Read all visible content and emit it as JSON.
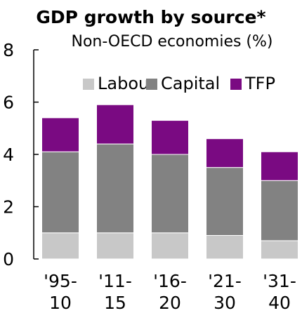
{
  "chart_data": {
    "type": "bar",
    "stacked": true,
    "title": "GDP growth by source*",
    "subtitle": "Non-OECD economies (%)",
    "xlabel": "",
    "ylabel": "",
    "ylim": [
      0,
      8
    ],
    "yticks": [
      "0",
      "2",
      "4",
      "6",
      "8"
    ],
    "ytick_values": [
      0,
      2,
      4,
      6,
      8
    ],
    "categories": [
      [
        "'95-",
        "10"
      ],
      [
        "'11-",
        "15"
      ],
      [
        "'16-",
        "20"
      ],
      [
        "'21-",
        "30"
      ],
      [
        "'31-",
        "40"
      ]
    ],
    "series": [
      {
        "name": "Labour",
        "color": "#c8c8c8",
        "values": [
          1.0,
          1.0,
          1.0,
          0.9,
          0.7
        ]
      },
      {
        "name": "Capital",
        "color": "#828282",
        "values": [
          3.1,
          3.4,
          3.0,
          2.6,
          2.3
        ]
      },
      {
        "name": "TFP",
        "color": "#7a0a82",
        "values": [
          1.3,
          1.5,
          1.3,
          1.1,
          1.1
        ]
      }
    ],
    "legend_position": "top",
    "grid": false
  }
}
